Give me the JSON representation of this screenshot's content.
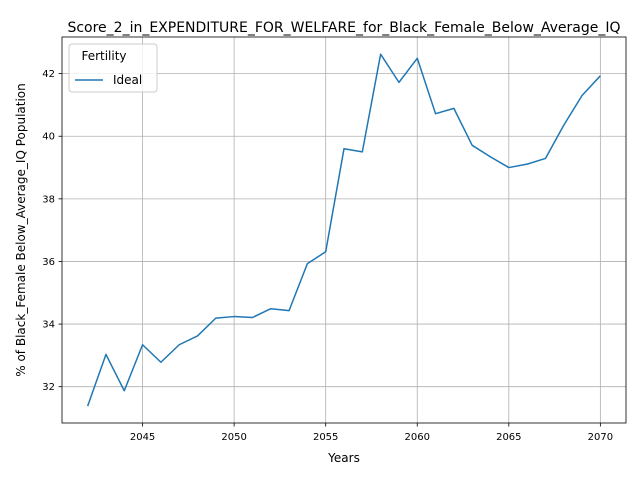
{
  "chart_data": {
    "type": "line",
    "title": "Score_2_in_EXPENDITURE_FOR_WELFARE_for_Black_Female_Below_Average_IQ",
    "xlabel": "Years",
    "ylabel": "% of Black_Female Below_Average_IQ Population",
    "xlim": [
      2040.6,
      2071.4
    ],
    "ylim": [
      30.84,
      43.17
    ],
    "x_ticks": [
      "2045",
      "2050",
      "2055",
      "2060",
      "2065",
      "2070"
    ],
    "y_ticks": [
      "32",
      "34",
      "36",
      "38",
      "40",
      "42"
    ],
    "grid": true,
    "legend": {
      "title": "Fertility",
      "location": "top-left"
    },
    "x": [
      2042,
      2043,
      2044,
      2045,
      2046,
      2047,
      2048,
      2049,
      2050,
      2051,
      2052,
      2053,
      2054,
      2055,
      2056,
      2057,
      2058,
      2059,
      2060,
      2061,
      2062,
      2063,
      2064,
      2065,
      2066,
      2067,
      2068,
      2069,
      2070
    ],
    "series": [
      {
        "name": "Ideal",
        "color": "#1f77b4",
        "values": [
          31.38,
          33.03,
          31.87,
          33.34,
          32.78,
          33.34,
          33.62,
          34.19,
          34.24,
          34.21,
          34.49,
          34.43,
          35.93,
          36.31,
          39.6,
          39.5,
          42.62,
          41.72,
          42.49,
          40.72,
          40.89,
          39.71,
          39.34,
          39.0,
          39.11,
          39.29,
          40.35,
          41.3,
          41.93
        ]
      }
    ]
  }
}
